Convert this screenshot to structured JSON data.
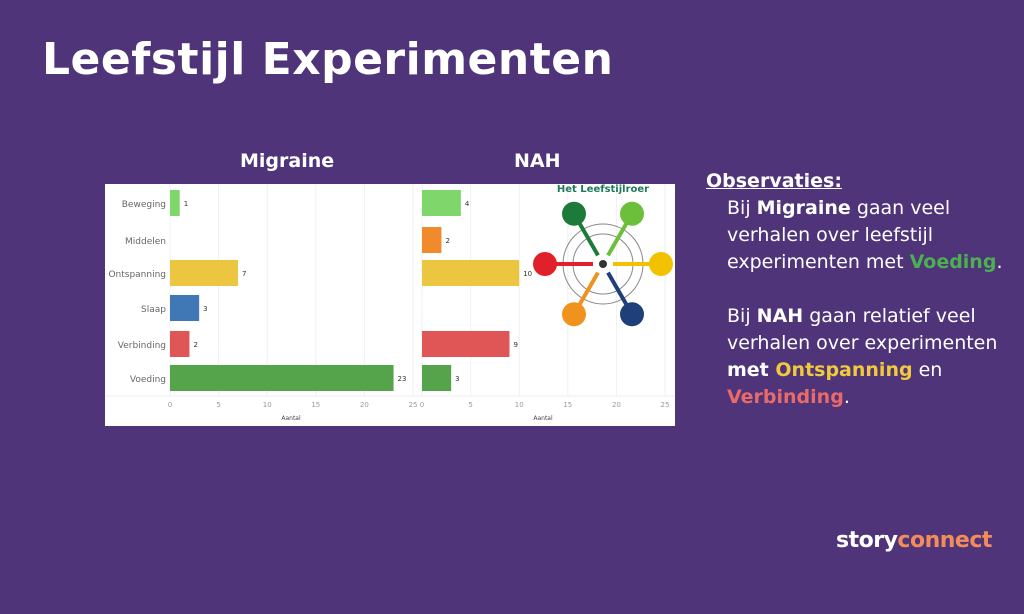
{
  "title": "Leefstijl Experimenten",
  "observations": {
    "heading": "Observaties:",
    "p1": [
      "Bij ",
      "Migraine",
      " gaan veel verhalen over leefstijl experimenten met ",
      "Voeding",
      "."
    ],
    "p2": [
      "Bij ",
      "NAH",
      " gaan relatief veel verhalen over experimenten ",
      "met ",
      "Ontspanning",
      " en ",
      "Verbinding",
      "."
    ]
  },
  "colors": {
    "green": "#4caf50",
    "yellow": "#f0c93c",
    "red": "#e05a5a",
    "background": "#4f3479",
    "orange": "#f28c5a"
  },
  "logo": {
    "part1": "story",
    "part2": "connect"
  },
  "wheel_title": "Het Leefstijlroer",
  "chart_data": [
    {
      "type": "bar",
      "orientation": "horizontal",
      "title": "Migraine",
      "xlabel": "Aantal",
      "xlim": [
        0,
        25
      ],
      "xticks": [
        0,
        5,
        10,
        15,
        20,
        25
      ],
      "categories": [
        "Beweging",
        "Middelen",
        "Ontspanning",
        "Slaap",
        "Verbinding",
        "Voeding"
      ],
      "values": [
        1,
        null,
        7,
        3,
        2,
        23
      ],
      "bar_colors": [
        "#7fd66b",
        "#f08a2c",
        "#ecc640",
        "#3f78b5",
        "#e05555",
        "#55a34a"
      ]
    },
    {
      "type": "bar",
      "orientation": "horizontal",
      "title": "NAH",
      "xlabel": "Aantal",
      "xlim": [
        0,
        25
      ],
      "xticks": [
        0,
        5,
        10,
        15,
        20,
        25
      ],
      "categories": [
        "Beweging",
        "Middelen",
        "Ontspanning",
        "Slaap",
        "Verbinding",
        "Voeding"
      ],
      "values": [
        4,
        2,
        10,
        null,
        9,
        3
      ],
      "bar_colors": [
        "#7fd66b",
        "#f08a2c",
        "#ecc640",
        "#3f78b5",
        "#e05555",
        "#55a34a"
      ]
    }
  ]
}
